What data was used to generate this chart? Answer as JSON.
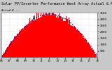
{
  "title": "Solar PV/Inverter Performance West Array Actual & Running Average Power Output",
  "subtitle": "ActualW ---",
  "bg_color": "#c8c8c8",
  "plot_bg_color": "#ffffff",
  "grid_color": "#aaaaaa",
  "bar_color": "#ff0000",
  "line_color": "#0000cc",
  "num_bars": 110,
  "ylim": [
    0,
    3500
  ],
  "yticks": [
    500,
    1000,
    1500,
    2000,
    2500,
    3000,
    3500
  ],
  "title_fontsize": 3.8,
  "tick_fontsize": 3.0,
  "figsize": [
    1.6,
    1.0
  ],
  "dpi": 100
}
